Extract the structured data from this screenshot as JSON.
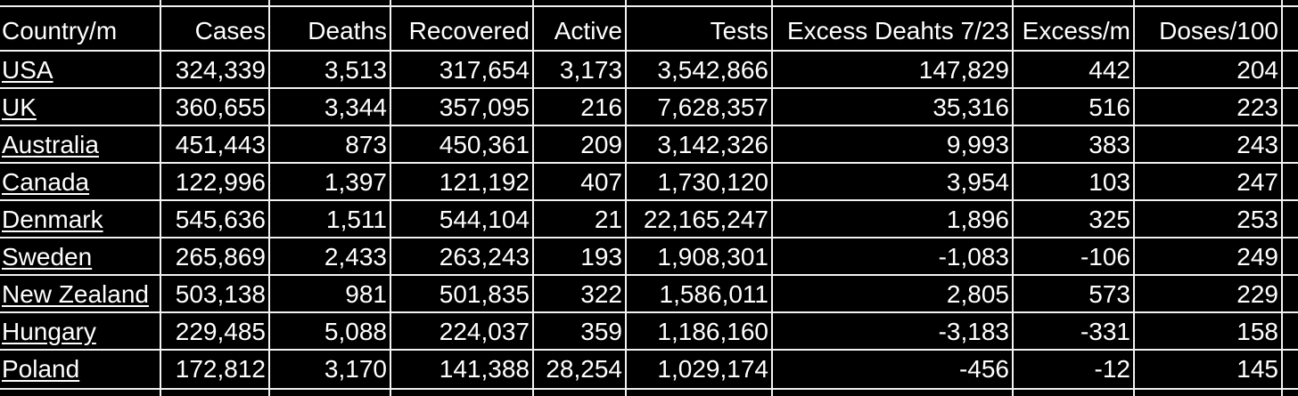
{
  "chart_data": {
    "type": "table",
    "columns": [
      "Country/m",
      "Cases",
      "Deaths",
      "Recovered",
      "Active",
      "Tests",
      "Excess Deahts 7/23",
      "Excess/m",
      "Doses/100"
    ],
    "rows": [
      [
        "USA",
        "324,339",
        "3,513",
        "317,654",
        "3,173",
        "3,542,866",
        "147,829",
        "442",
        "204"
      ],
      [
        "UK",
        "360,655",
        "3,344",
        "357,095",
        "216",
        "7,628,357",
        "35,316",
        "516",
        "223"
      ],
      [
        "Australia",
        "451,443",
        "873",
        "450,361",
        "209",
        "3,142,326",
        "9,993",
        "383",
        "243"
      ],
      [
        "Canada",
        "122,996",
        "1,397",
        "121,192",
        "407",
        "1,730,120",
        "3,954",
        "103",
        "247"
      ],
      [
        "Denmark",
        "545,636",
        "1,511",
        "544,104",
        "21",
        "22,165,247",
        "1,896",
        "325",
        "253"
      ],
      [
        "Sweden",
        "265,869",
        "2,433",
        "263,243",
        "193",
        "1,908,301",
        "-1,083",
        "-106",
        "249"
      ],
      [
        "New Zealand",
        "503,138",
        "981",
        "501,835",
        "322",
        "1,586,011",
        "2,805",
        "573",
        "229"
      ],
      [
        "Hungary",
        "229,485",
        "5,088",
        "224,037",
        "359",
        "1,186,160",
        "-3,183",
        "-331",
        "158"
      ],
      [
        "Poland",
        "172,812",
        "3,170",
        "141,388",
        "28,254",
        "1,029,174",
        "-456",
        "-12",
        "145"
      ]
    ],
    "colors": {
      "background": "#000000",
      "text": "#ffffff",
      "grid": "#f2f2f2"
    }
  }
}
